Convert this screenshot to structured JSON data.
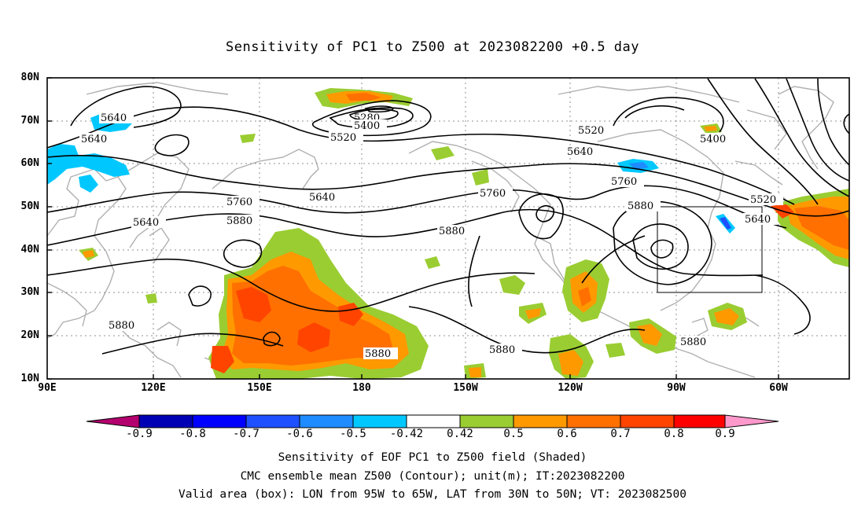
{
  "title": "Sensitivity of PC1 to Z500 at 2023082200 +0.5 day",
  "map": {
    "lat_labels": [
      "80N",
      "70N",
      "60N",
      "50N",
      "40N",
      "30N",
      "20N",
      "10N"
    ],
    "lon_labels": [
      "90E",
      "120E",
      "150E",
      "180",
      "150W",
      "120W",
      "90W",
      "60W"
    ],
    "contour_labels": [
      "5640",
      "5640",
      "5280",
      "5400",
      "5520",
      "5520",
      "5400",
      "5640",
      "5640",
      "5760",
      "5760",
      "5640",
      "5880",
      "5760",
      "5880",
      "5880",
      "5520",
      "5640",
      "5880",
      "5880",
      "5880",
      "5880"
    ],
    "valid_box": {
      "lon_west": "95W",
      "lon_east": "65W",
      "lat_south": "30N",
      "lat_north": "50N"
    }
  },
  "colorbar": {
    "labels": [
      "-0.9",
      "-0.8",
      "-0.7",
      "-0.6",
      "-0.5",
      "-0.42",
      "0.42",
      "0.5",
      "0.6",
      "0.7",
      "0.8",
      "0.9"
    ],
    "colors": [
      "#b4006e",
      "#0000b4",
      "#0000ff",
      "#1e50ff",
      "#1e8cff",
      "#00c8ff",
      "#ffffff",
      "#9acd32",
      "#ff9900",
      "#ff7000",
      "#ff4400",
      "#ff0000",
      "#ff99cc"
    ]
  },
  "captions": [
    "Sensitivity of EOF PC1 to Z500 field (Shaded)",
    "CMC ensemble mean Z500 (Contour); unit(m); IT:2023082200",
    "Valid area (box): LON from 95W to 65W, LAT from 30N to 50N; VT: 2023082500"
  ]
}
